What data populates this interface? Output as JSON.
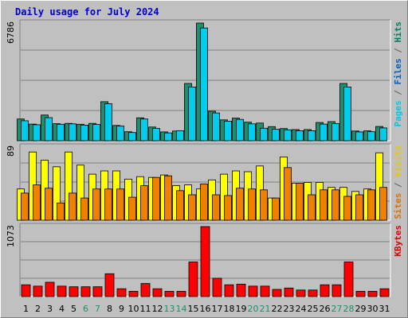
{
  "chart_data": {
    "type": "bar",
    "title": "Daily usage for July 2024",
    "categories": [
      "1",
      "2",
      "3",
      "4",
      "5",
      "6",
      "7",
      "8",
      "9",
      "10",
      "11",
      "12",
      "13",
      "14",
      "15",
      "16",
      "17",
      "18",
      "19",
      "20",
      "21",
      "22",
      "23",
      "24",
      "25",
      "26",
      "27",
      "28",
      "29",
      "30",
      "31"
    ],
    "weekend_days": [
      "6",
      "7",
      "13",
      "14",
      "20",
      "21",
      "27",
      "28"
    ],
    "panels": [
      {
        "max_label": "6786",
        "legend": [
          {
            "text": "Pages",
            "color": "#00c8e8"
          },
          {
            "text": " / ",
            "color": "#606060"
          },
          {
            "text": "Files",
            "color": "#0060c0"
          },
          {
            "text": " / ",
            "color": "#606060"
          },
          {
            "text": "Hits",
            "color": "#008060"
          }
        ],
        "ymax": 6786,
        "series": [
          {
            "color": "#1e8f6e",
            "values": [
              1250,
              960,
              1480,
              980,
              1000,
              950,
              1000,
              2250,
              880,
              520,
              1320,
              790,
              510,
              560,
              3300,
              6786,
              1700,
              1200,
              1300,
              1070,
              1020,
              810,
              700,
              640,
              640,
              1050,
              1100,
              3300,
              560,
              570,
              820
            ]
          },
          {
            "color": "#00ccee",
            "values": [
              1150,
              920,
              1330,
              950,
              970,
              900,
              940,
              2130,
              850,
              470,
              1250,
              710,
              450,
              580,
              3100,
              6500,
              1600,
              1130,
              1230,
              970,
              720,
              660,
              630,
              580,
              580,
              960,
              980,
              3100,
              510,
              520,
              740
            ]
          }
        ]
      },
      {
        "max_label": "89",
        "legend": [
          {
            "text": "Sites",
            "color": "#e07000"
          },
          {
            "text": " / ",
            "color": "#606060"
          },
          {
            "text": "Visits",
            "color": "#e8c800"
          }
        ],
        "ymax": 89,
        "series": [
          {
            "color": "#ffff00",
            "values": [
              38,
              83,
              73,
              65,
              83,
              67,
              56,
              60,
              60,
              50,
              53,
              52,
              55,
              42,
              43,
              38,
              49,
              56,
              60,
              59,
              66,
              27,
              77,
              45,
              46,
              46,
              40,
              40,
              35,
              38,
              82
            ]
          },
          {
            "color": "#f08000",
            "values": [
              33,
              43,
              39,
              21,
              33,
              27,
              38,
              38,
              38,
              28,
              42,
              52,
              54,
              36,
              31,
              44,
              31,
              30,
              39,
              38,
              37,
              27,
              64,
              45,
              31,
              37,
              37,
              29,
              31,
              37,
              40
            ]
          }
        ]
      },
      {
        "max_label": "1073",
        "legend": [
          {
            "text": "KBytes",
            "color": "#e00000"
          }
        ],
        "ymax": 1073,
        "series": [
          {
            "color": "#ff0000",
            "values": [
              180,
              160,
              220,
              160,
              150,
              150,
              150,
              350,
              120,
              80,
              200,
              120,
              80,
              80,
              530,
              1073,
              280,
              180,
              190,
              160,
              160,
              110,
              130,
              100,
              100,
              180,
              180,
              530,
              80,
              80,
              120
            ]
          }
        ]
      }
    ]
  }
}
